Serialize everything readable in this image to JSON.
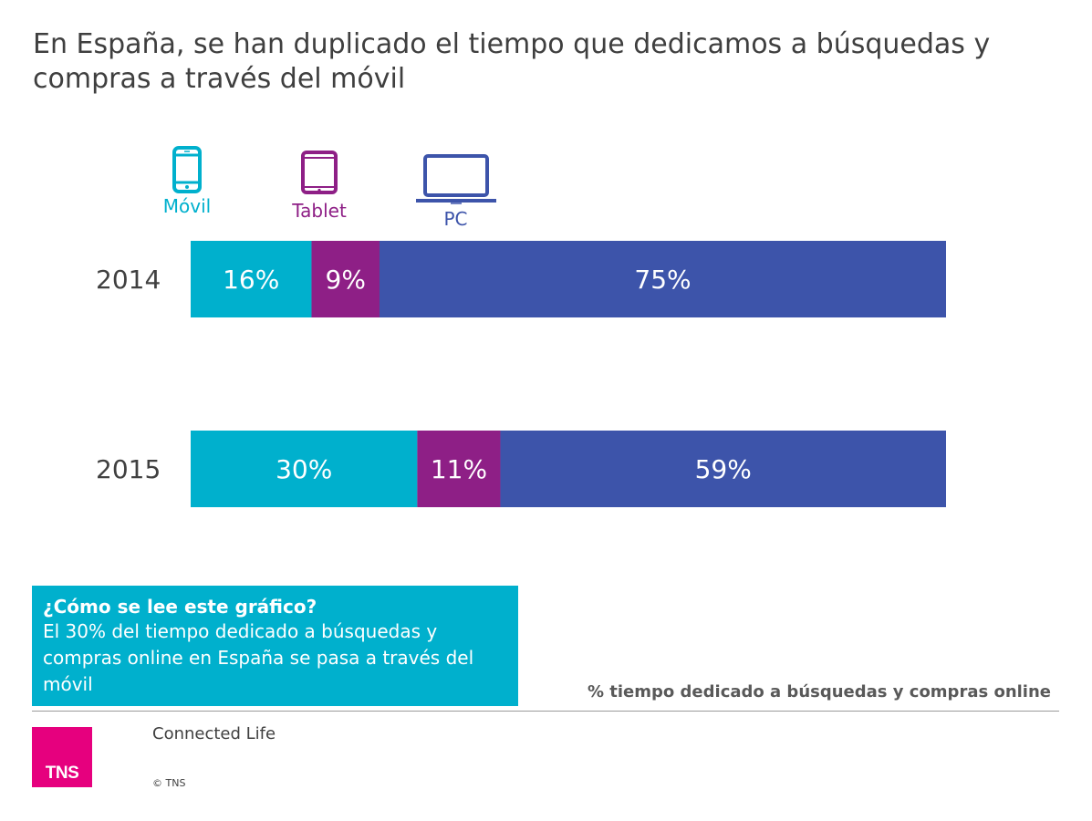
{
  "title": "En España, se han duplicado el tiempo que dedicamos a búsquedas y compras a través del móvil",
  "legend": {
    "movil": {
      "label": "Móvil",
      "icon": "smartphone-icon",
      "color": "#00b0cd"
    },
    "tablet": {
      "label": "Tablet",
      "icon": "tablet-icon",
      "color": "#8e1f86"
    },
    "pc": {
      "label": "PC",
      "icon": "laptop-icon",
      "color": "#3d54aa"
    }
  },
  "chart_data": {
    "type": "bar",
    "orientation": "horizontal",
    "stacked": true,
    "normalized": true,
    "categories": [
      "2014",
      "2015"
    ],
    "series": [
      {
        "name": "Móvil",
        "values": [
          16,
          30
        ],
        "labels": [
          "16%",
          "30%"
        ],
        "color": "#00b0cd"
      },
      {
        "name": "Tablet",
        "values": [
          9,
          11
        ],
        "labels": [
          "9%",
          "11%"
        ],
        "color": "#8e1f86"
      },
      {
        "name": "PC",
        "values": [
          75,
          59
        ],
        "labels": [
          "75%",
          "59%"
        ],
        "color": "#3d54aa"
      }
    ],
    "xlabel": "% tiempo dedicado a búsquedas y compras online",
    "xlim": [
      0,
      100
    ],
    "grid": false,
    "legend_position": "top-left"
  },
  "howto": {
    "title": "¿Cómo se lee este gráfico?",
    "text": "El 30% del tiempo dedicado a búsquedas y compras online en España se pasa a través del móvil"
  },
  "footer": {
    "logo": "TNS",
    "title": "Connected Life",
    "copyright": "© TNS"
  }
}
